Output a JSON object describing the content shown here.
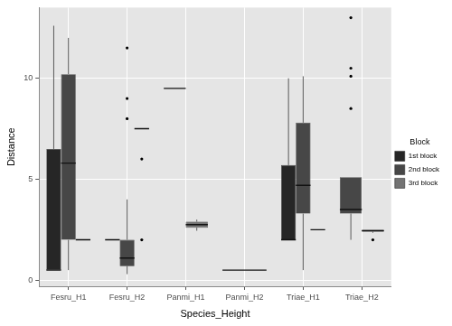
{
  "chart_data": {
    "type": "boxplot",
    "x_label": "Species_Height",
    "y_label": "Distance",
    "legend_title": "Block",
    "legend": "right",
    "grid": true,
    "categories": [
      "Fesru_H1",
      "Fesru_H2",
      "Panmi_H1",
      "Panmi_H2",
      "Triae_H1",
      "Triae_H2"
    ],
    "ylim": [
      -0.3,
      13.5
    ],
    "yticks": [
      0,
      5,
      10
    ],
    "series": [
      {
        "name": "1st block",
        "color": "#262626",
        "values": [
          {
            "min": 0.5,
            "q1": 0.5,
            "median": 0.5,
            "q3": 6.5,
            "max": 12.6,
            "outliers": []
          },
          {
            "min": 2,
            "q1": 2,
            "median": 2,
            "q3": 2,
            "max": 2,
            "outliers": []
          },
          {
            "min": 9.5,
            "q1": 9.5,
            "median": 9.5,
            "q3": 9.5,
            "max": 9.5,
            "outliers": []
          },
          {
            "min": 0.5,
            "q1": 0.5,
            "median": 0.5,
            "q3": 0.5,
            "max": 0.5,
            "outliers": []
          },
          {
            "min": 2,
            "q1": 2,
            "median": 2,
            "q3": 5.7,
            "max": 10,
            "outliers": []
          },
          null
        ]
      },
      {
        "name": "2nd block",
        "color": "#474747",
        "values": [
          {
            "min": 0.5,
            "q1": 2,
            "median": 5.8,
            "q3": 10.2,
            "max": 12,
            "outliers": []
          },
          {
            "min": 0.3,
            "q1": 0.7,
            "median": 1.1,
            "q3": 2,
            "max": 4,
            "outliers": [
              11.5,
              9,
              8
            ]
          },
          null,
          null,
          {
            "min": 0.5,
            "q1": 3.3,
            "median": 4.7,
            "q3": 7.8,
            "max": 10.1,
            "outliers": []
          },
          {
            "min": 2,
            "q1": 3.3,
            "median": 3.5,
            "q3": 5.1,
            "max": 5.1,
            "outliers": [
              13,
              10.5,
              10.1,
              8.5
            ]
          }
        ]
      },
      {
        "name": "3rd block",
        "color": "#737373",
        "values": [
          {
            "min": 2,
            "q1": 2,
            "median": 2,
            "q3": 2,
            "max": 2,
            "outliers": []
          },
          {
            "min": 7.5,
            "q1": 7.5,
            "median": 7.5,
            "q3": 7.5,
            "max": 7.5,
            "outliers": [
              6,
              2
            ]
          },
          {
            "min": 2.45,
            "q1": 2.6,
            "median": 2.75,
            "q3": 2.9,
            "max": 3,
            "outliers": []
          },
          null,
          {
            "min": 2.5,
            "q1": 2.5,
            "median": 2.5,
            "q3": 2.5,
            "max": 2.5,
            "outliers": []
          },
          {
            "min": 2.35,
            "q1": 2.4,
            "median": 2.45,
            "q3": 2.5,
            "max": 2.5,
            "outliers": [
              2
            ]
          }
        ]
      }
    ]
  }
}
